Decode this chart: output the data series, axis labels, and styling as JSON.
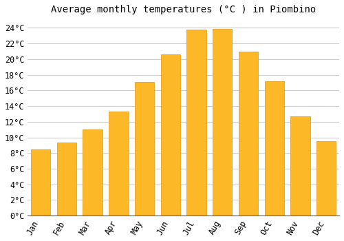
{
  "title": "Average monthly temperatures (°C ) in Piombino",
  "months": [
    "Jan",
    "Feb",
    "Mar",
    "Apr",
    "May",
    "Jun",
    "Jul",
    "Aug",
    "Sep",
    "Oct",
    "Nov",
    "Dec"
  ],
  "values": [
    8.5,
    9.3,
    11.0,
    13.3,
    17.1,
    20.6,
    23.8,
    23.9,
    21.0,
    17.2,
    12.7,
    9.5
  ],
  "bar_color": "#FDB827",
  "bar_edge_color": "#E8A020",
  "background_color": "#ffffff",
  "grid_color": "#cccccc",
  "ylim": [
    0,
    25
  ],
  "ytick_step": 2,
  "title_fontsize": 10,
  "tick_fontsize": 8.5,
  "font_family": "monospace",
  "bar_width": 0.75
}
